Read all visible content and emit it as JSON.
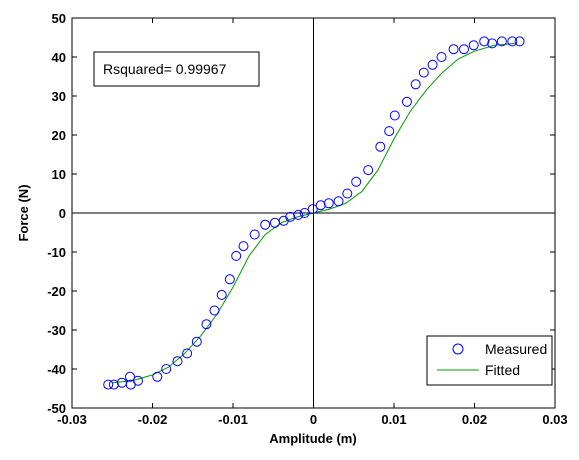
{
  "chart_data": {
    "type": "scatter",
    "xlabel": "Amplitude (m)",
    "ylabel": "Force (N)",
    "xlim": [
      -0.03,
      0.03
    ],
    "ylim": [
      -50,
      50
    ],
    "x_ticks": [
      -0.03,
      -0.02,
      -0.01,
      0,
      0.01,
      0.02,
      0.03
    ],
    "y_ticks": [
      -50,
      -40,
      -30,
      -20,
      -10,
      0,
      10,
      20,
      30,
      40,
      50
    ],
    "x_tick_labels": [
      "-0.03",
      "-0.02",
      "-0.01",
      "0",
      "0.01",
      "0.02",
      "0.03"
    ],
    "y_tick_labels": [
      "-50",
      "-40",
      "-30",
      "-20",
      "-10",
      "0",
      "10",
      "20",
      "30",
      "40",
      "50"
    ],
    "grid": false,
    "zero_lines": true,
    "annotation": "Rsquared= 0.99967",
    "legend": {
      "position": "bottom-right",
      "entries": [
        "Measured",
        "Fitted"
      ]
    },
    "series": [
      {
        "name": "Measured",
        "style": "open-circle",
        "color": "#0000ff",
        "x": [
          -0.0255,
          -0.0248,
          -0.0238,
          -0.0228,
          -0.0227,
          -0.0218,
          -0.0194,
          -0.0183,
          -0.0169,
          -0.0157,
          -0.0145,
          -0.0133,
          -0.0123,
          -0.0114,
          -0.0104,
          -0.0096,
          -0.0087,
          -0.0073,
          -0.006,
          -0.0048,
          -0.0037,
          -0.0029,
          -0.0019,
          -0.0011,
          -0.0001,
          0.0009,
          0.0019,
          0.0031,
          0.0042,
          0.0053,
          0.0068,
          0.0083,
          0.0094,
          0.0101,
          0.0116,
          0.0127,
          0.0137,
          0.0148,
          0.0159,
          0.0174,
          0.0187,
          0.0199,
          0.0212,
          0.0222,
          0.0234,
          0.0247,
          0.0256
        ],
        "y": [
          -44,
          -44,
          -43.5,
          -42,
          -44,
          -43,
          -42,
          -40,
          -38,
          -36,
          -33,
          -28.5,
          -25,
          -21,
          -17,
          -11,
          -8.5,
          -5.5,
          -3,
          -2.5,
          -2,
          -1,
          -0.5,
          0,
          1,
          2,
          2.5,
          3,
          5,
          8,
          11,
          17,
          21,
          25,
          28.5,
          33,
          36,
          38,
          40,
          42,
          42,
          43,
          44,
          43.5,
          44,
          44,
          44
        ]
      },
      {
        "name": "Fitted",
        "style": "line",
        "color": "#009900",
        "x": [
          -0.025,
          -0.0225,
          -0.02,
          -0.018,
          -0.016,
          -0.014,
          -0.012,
          -0.01,
          -0.008,
          -0.006,
          -0.004,
          -0.002,
          0,
          0.002,
          0.004,
          0.006,
          0.008,
          0.01,
          0.012,
          0.014,
          0.016,
          0.018,
          0.02,
          0.0225,
          0.025
        ],
        "y": [
          -43.5,
          -43,
          -41.5,
          -39.5,
          -36,
          -31.5,
          -26,
          -19,
          -11,
          -5.5,
          -2.5,
          -1,
          0,
          1,
          2.5,
          5.5,
          11,
          19,
          26,
          31.5,
          36,
          39.5,
          41.5,
          43,
          43.5
        ]
      }
    ]
  }
}
